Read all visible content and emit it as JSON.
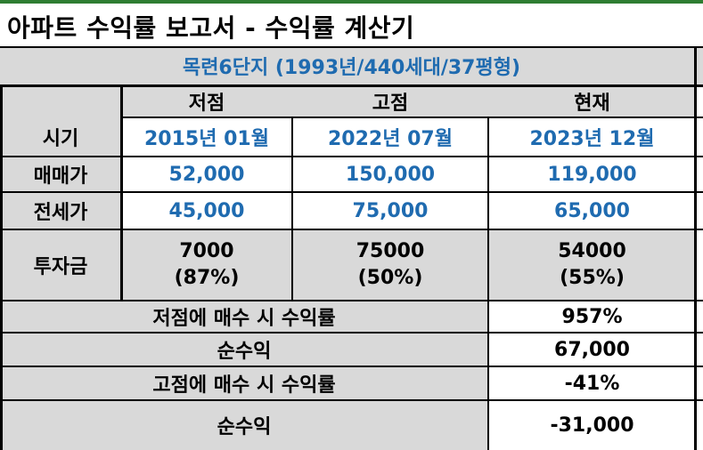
{
  "title": "아파트 수익률 보고서 - 수익률 계산기",
  "complex_title": "목련6단지 (1993년/440세대/37평형)",
  "columns": [
    "저점",
    "고점",
    "현재"
  ],
  "rows": {
    "period": {
      "label": "시기",
      "values": [
        "2015년 01월",
        "2022년 07월",
        "2023년 12월"
      ]
    },
    "sale_price": {
      "label": "매매가",
      "values": [
        "52,000",
        "150,000",
        "119,000"
      ]
    },
    "jeonse_price": {
      "label": "전세가",
      "values": [
        "45,000",
        "75,000",
        "65,000"
      ]
    },
    "investment": {
      "label": "투자금",
      "values": [
        {
          "amount": "7000",
          "ratio": "(87%)"
        },
        {
          "amount": "75000",
          "ratio": "(50%)"
        },
        {
          "amount": "54000",
          "ratio": "(55%)"
        }
      ]
    }
  },
  "summary": [
    {
      "label": "저점에 매수 시 수익률",
      "value": "957%"
    },
    {
      "label": "순수익",
      "value": "67,000"
    },
    {
      "label": "고점에 매수 시 수익률",
      "value": "-41%"
    },
    {
      "label": "순수익",
      "value": "-31,000"
    }
  ],
  "colors": {
    "blue_text": "#1f6bb0",
    "gray_fill": "#d9d9d9",
    "top_bar": "#2e7d32"
  }
}
